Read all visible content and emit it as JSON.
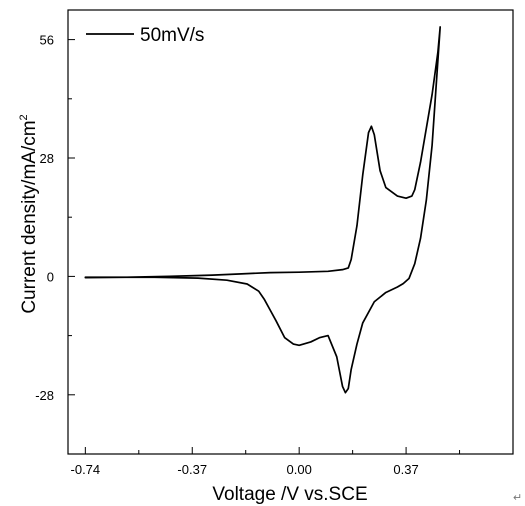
{
  "chart_data": {
    "type": "line",
    "title": "",
    "xlabel": "Voltage /V vs.SCE",
    "ylabel_main": "Current density/mA/cm",
    "ylabel_sup": "2",
    "xlim": [
      -0.8,
      0.74
    ],
    "ylim": [
      -42,
      63
    ],
    "x_ticks": [
      -0.74,
      -0.37,
      0.0,
      0.37
    ],
    "x_tick_labels": [
      "-0.74",
      "-0.37",
      "0.00",
      "0.37"
    ],
    "y_ticks": [
      -28,
      0,
      28,
      56
    ],
    "y_tick_labels": [
      "-28",
      "0",
      "28",
      "56"
    ],
    "legend_placement": "top-left",
    "trailing_mark": "↵",
    "series": [
      {
        "name": "50mV/s",
        "color": "#000000",
        "x": [
          -0.74,
          -0.6,
          -0.45,
          -0.3,
          -0.2,
          -0.1,
          0.0,
          0.1,
          0.15,
          0.17,
          0.18,
          0.2,
          0.22,
          0.24,
          0.25,
          0.26,
          0.28,
          0.3,
          0.34,
          0.37,
          0.39,
          0.4,
          0.42,
          0.44,
          0.46,
          0.48,
          0.488,
          0.46,
          0.44,
          0.42,
          0.4,
          0.38,
          0.36,
          0.34,
          0.3,
          0.26,
          0.22,
          0.2,
          0.18,
          0.17,
          0.16,
          0.15,
          0.13,
          0.1,
          0.07,
          0.04,
          0.0,
          -0.02,
          -0.05,
          -0.08,
          -0.1,
          -0.12,
          -0.14,
          -0.18,
          -0.25,
          -0.35,
          -0.5,
          -0.74
        ],
        "y": [
          -0.3,
          -0.2,
          0.0,
          0.3,
          0.6,
          0.9,
          1.0,
          1.2,
          1.6,
          2.0,
          4.0,
          12.0,
          24.0,
          34.0,
          35.5,
          33.5,
          25.0,
          21.0,
          19.0,
          18.5,
          19.0,
          20.5,
          27.0,
          35.0,
          43.0,
          53.0,
          59.0,
          31.0,
          18.0,
          9.0,
          3.0,
          -0.5,
          -1.7,
          -2.5,
          -3.8,
          -6.0,
          -11.0,
          -16.0,
          -22.0,
          -26.5,
          -27.5,
          -26.0,
          -19.0,
          -14.0,
          -14.5,
          -15.5,
          -16.3,
          -16.0,
          -14.5,
          -10.5,
          -8.0,
          -5.5,
          -3.5,
          -1.8,
          -0.9,
          -0.4,
          -0.2,
          -0.2
        ]
      }
    ]
  }
}
